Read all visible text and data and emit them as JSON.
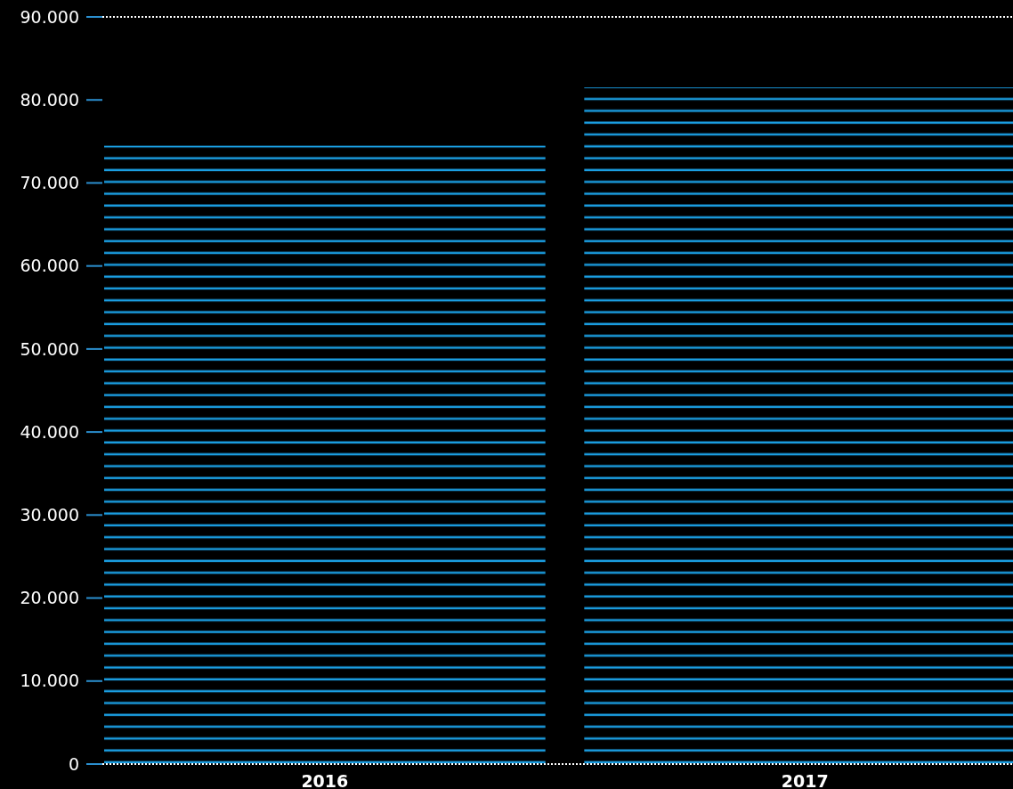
{
  "chart_data": {
    "type": "bar",
    "categories": [
      "2016",
      "2017"
    ],
    "values": [
      74500,
      81500
    ],
    "color": "#1a9ee2",
    "ylim": [
      0,
      90000
    ],
    "yticks": [
      {
        "value": 0,
        "label": "0"
      },
      {
        "value": 10000,
        "label": "10.000"
      },
      {
        "value": 20000,
        "label": "20.000"
      },
      {
        "value": 30000,
        "label": "30.000"
      },
      {
        "value": 40000,
        "label": "40.000"
      },
      {
        "value": 50000,
        "label": "50.000"
      },
      {
        "value": 60000,
        "label": "60.000"
      },
      {
        "value": 70000,
        "label": "70.000"
      },
      {
        "value": 80000,
        "label": "80.000"
      },
      {
        "value": 90000,
        "label": "90.000"
      }
    ],
    "grid": false
  }
}
